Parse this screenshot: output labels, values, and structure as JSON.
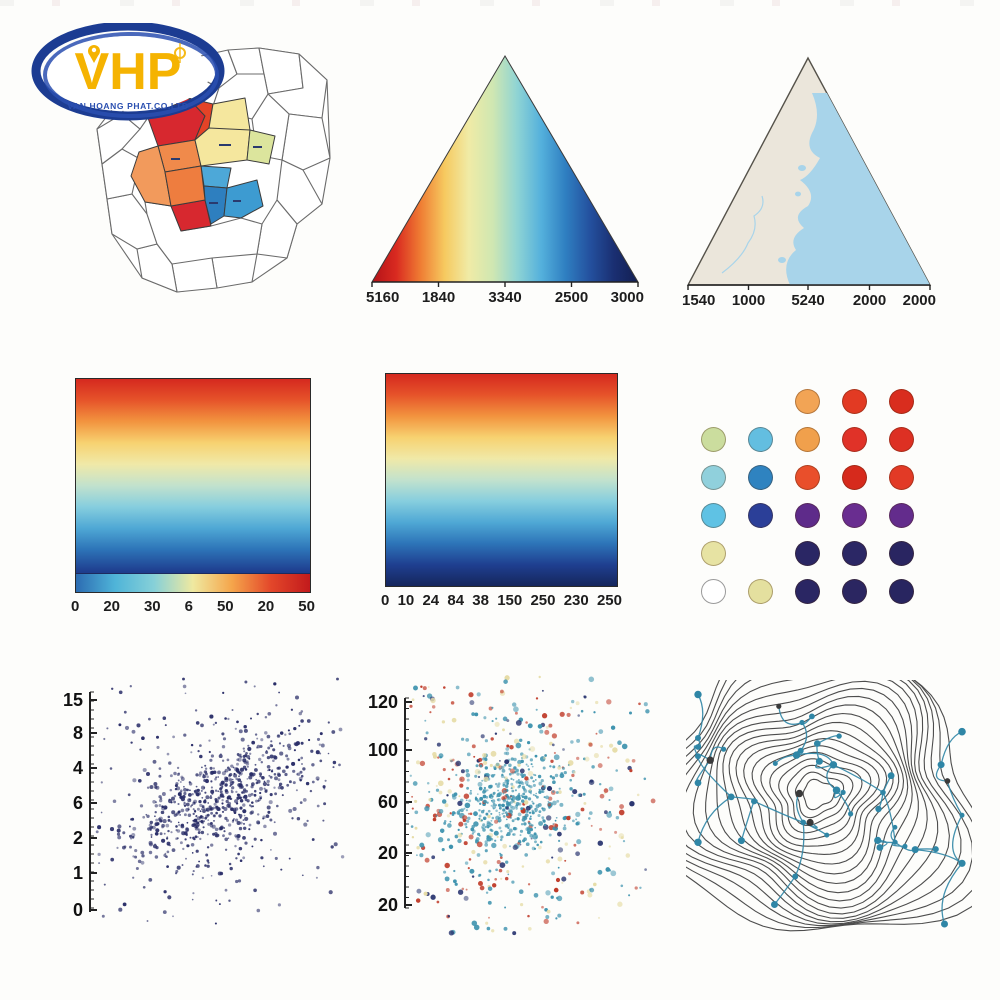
{
  "logo": {
    "title": "VHP",
    "subtitle": "VAN HOANG PHAT.CO.LTD",
    "ring_color": "#1c3c92",
    "ring_highlight": "#2a4fb0",
    "text_color": "#F5B301"
  },
  "chart_data": [
    {
      "type": "map",
      "name": "district-choropleth",
      "outline_color": "#6b6b6b",
      "region_colors": [
        "#D7282F",
        "#E34327",
        "#F5E79E",
        "#F08A4B",
        "#F5E79E",
        "#DCE59D",
        "#F29A5C",
        "#D7282F",
        "#4DA8D8",
        "#2E7FBF",
        "#3D9BD1",
        "#EE7D3F"
      ]
    },
    {
      "type": "heatmap",
      "name": "gradient-triangle",
      "shape": "triangle",
      "gradient": [
        "#b31218",
        "#d92a20",
        "#ef7c33",
        "#f6c95f",
        "#f0eba6",
        "#cfe7b2",
        "#8fd4d4",
        "#54b0dc",
        "#2f7fc1",
        "#24519f",
        "#1a2f72",
        "#131f52"
      ],
      "x_ticks": [
        "5160",
        "1840",
        "3340",
        "2500",
        "3000"
      ]
    },
    {
      "type": "map",
      "name": "coastline-triangle",
      "shape": "triangle",
      "land_color": "#EBE6DB",
      "water_color": "#A8D4EA",
      "outline_color": "#55524a",
      "x_ticks": [
        "1540",
        "1000",
        "5240",
        "2000",
        "2000"
      ]
    },
    {
      "type": "heatmap",
      "name": "vertical-gradient-with-colorbar",
      "gradient": [
        "#d5291f",
        "#e6542a",
        "#f2943f",
        "#f7d271",
        "#f0e9a8",
        "#c2e2cd",
        "#86cede",
        "#4fa8d5",
        "#2d74b8",
        "#1f3f90",
        "#15265c"
      ],
      "colorbar_gradient": [
        "#2c6cb2",
        "#4fb4d8",
        "#86d0d8",
        "#efe9a0",
        "#f5a54b",
        "#e3472a",
        "#c21a1c"
      ],
      "x_ticks": [
        "0",
        "20",
        "30",
        "6",
        "50",
        "20",
        "50"
      ]
    },
    {
      "type": "heatmap",
      "name": "vertical-gradient",
      "gradient": [
        "#d5291f",
        "#e6542a",
        "#f2943f",
        "#f7d271",
        "#f0e9a8",
        "#c2e2cd",
        "#86cede",
        "#4fa8d5",
        "#2d74b8",
        "#1f3f90",
        "#15265c"
      ],
      "x_ticks": [
        "0",
        "10",
        "24",
        "84",
        "38",
        "150",
        "250",
        "230",
        "250"
      ]
    },
    {
      "type": "heatmap",
      "name": "dot-matrix",
      "rows": 6,
      "cols": 5,
      "empty": null,
      "white_dot_border": "#9a9a9a",
      "colors": [
        [
          null,
          null,
          "#F2A455",
          "#E23A23",
          "#D92D1E"
        ],
        [
          "#CBDD9E",
          "#63BEE0",
          "#F0A04C",
          "#E03228",
          "#DD3023"
        ],
        [
          "#90D0DC",
          "#2F83C0",
          "#E94F2B",
          "#D62A1C",
          "#E23A26"
        ],
        [
          "#5FC2E4",
          "#2B3F98",
          "#5E2B8A",
          "#692D90",
          "#632C8C"
        ],
        [
          "#E7E3A3",
          null,
          "#2A2664",
          "#2B2765",
          "#292561"
        ],
        [
          "#FFFFFF",
          "#E4E09F",
          "#2A2663",
          "#2B2661",
          "#282560"
        ]
      ]
    },
    {
      "type": "scatter",
      "name": "correlated-scatter",
      "point_color": "#2a2e68",
      "n": 900,
      "correlation": "positive",
      "y_ticks": [
        "15",
        "8",
        "4",
        "6",
        "2",
        "1",
        "0"
      ]
    },
    {
      "type": "scatter",
      "name": "multicolor-scatter",
      "point_colors": [
        "#3E93AE",
        "#BF3A28",
        "#E6DCA6",
        "#27336E"
      ],
      "core_color": "#3E93AE",
      "n": 1000,
      "y_ticks": [
        "120",
        "100",
        "60",
        "20",
        "20"
      ]
    },
    {
      "type": "heatmap",
      "name": "contour-network",
      "contour_color": "#4d4d4d",
      "node_color": "#2F86A6",
      "dark_node_color": "#3a3a3a",
      "levels": 20,
      "nodes": 46
    }
  ]
}
